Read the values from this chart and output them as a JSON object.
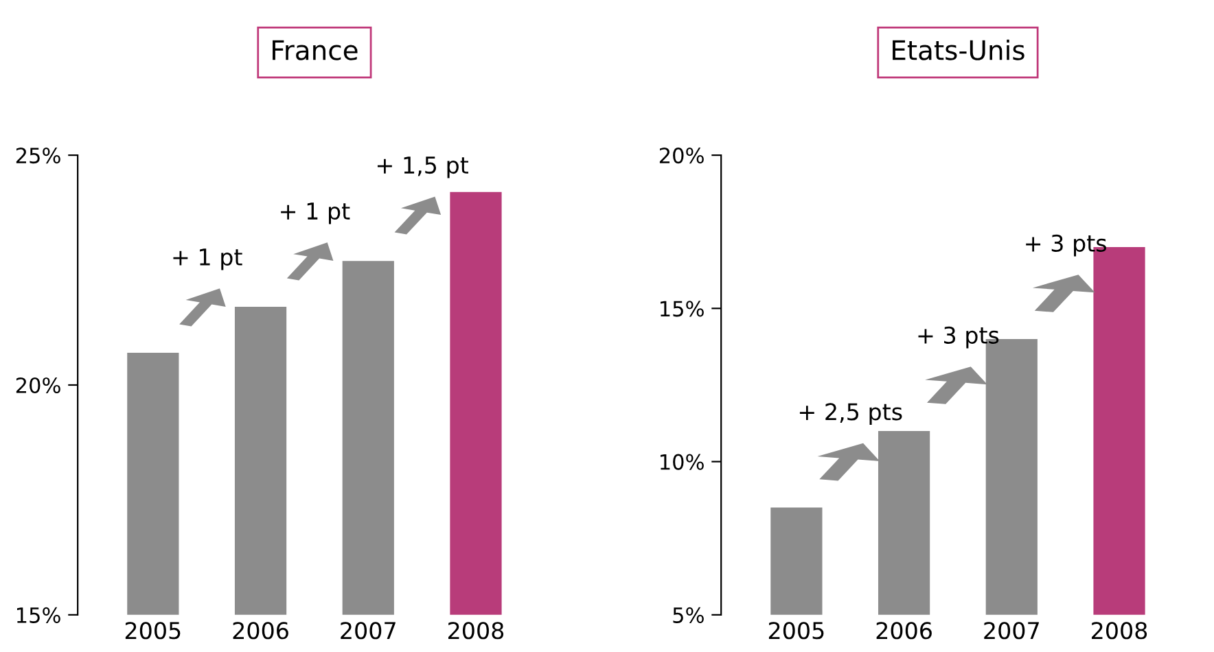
{
  "chart_data": [
    {
      "type": "bar",
      "title": "France",
      "categories": [
        "2005",
        "2006",
        "2007",
        "2008"
      ],
      "values": [
        20.7,
        21.7,
        22.7,
        24.2
      ],
      "colors": [
        "#8c8c8c",
        "#8c8c8c",
        "#8c8c8c",
        "#b83c7a"
      ],
      "ylim": [
        15,
        25
      ],
      "yticks": [
        {
          "value": 15,
          "label": "15%"
        },
        {
          "value": 20,
          "label": "20%"
        },
        {
          "value": 25,
          "label": "25%"
        }
      ],
      "annotations": [
        "+ 1 pt",
        "+ 1 pt",
        "+ 1,5 pt"
      ]
    },
    {
      "type": "bar",
      "title": "Etats-Unis",
      "categories": [
        "2005",
        "2006",
        "2007",
        "2008"
      ],
      "values": [
        8.5,
        11,
        14,
        17
      ],
      "colors": [
        "#8c8c8c",
        "#8c8c8c",
        "#8c8c8c",
        "#b83c7a"
      ],
      "ylim": [
        5,
        20
      ],
      "yticks": [
        {
          "value": 5,
          "label": "5%"
        },
        {
          "value": 10,
          "label": "10%"
        },
        {
          "value": 15,
          "label": "15%"
        },
        {
          "value": 20,
          "label": "20%"
        }
      ],
      "annotations": [
        "+ 2,5 pts",
        "+ 3 pts",
        "+ 3 pts"
      ]
    }
  ]
}
